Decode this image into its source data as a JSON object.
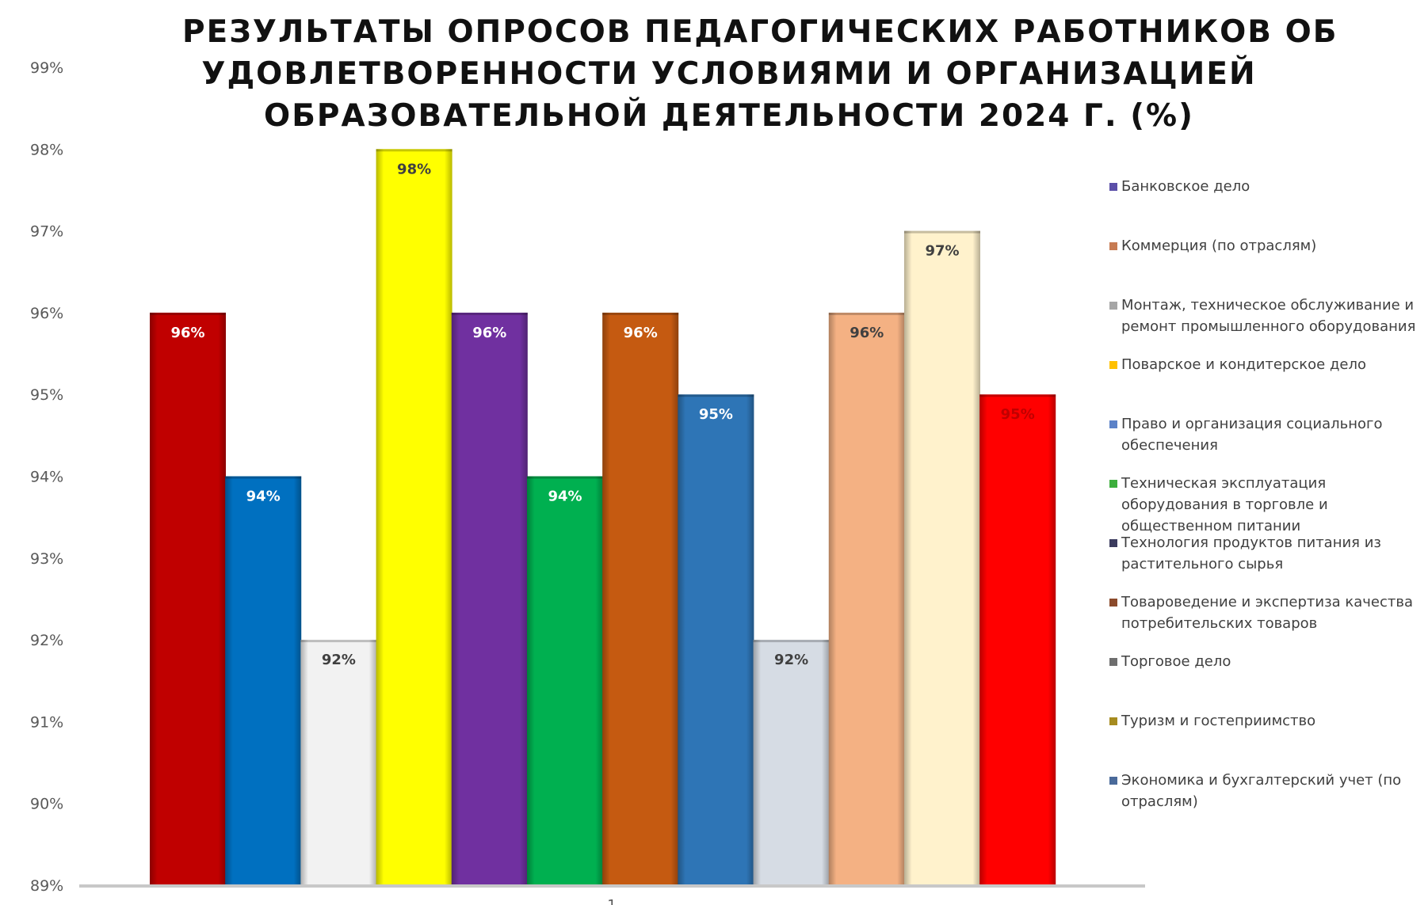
{
  "chart_data": {
    "type": "bar",
    "title": "РЕЗУЛЬТАТЫ ОПРОСОВ ПЕДАГОГИЧЕСКИХ РАБОТНИКОВ ОБ УДОВЛЕТВОРЕННОСТИ УСЛОВИЯМИ И ОРГАНИЗАЦИЕЙ ОБРАЗОВАТЕЛЬНОЙ ДЕЯТЕЛЬНОСТИ 2024 Г. (%)",
    "title_lines": [
      "РЕЗУЛЬТАТЫ ОПРОСОВ ПЕДАГОГИЧЕСКИХ РАБОТНИКОВ ОБ",
      "УДОВЛЕТВОРЕННОСТИ УСЛОВИЯМИ И ОРГАНИЗАЦИЕЙ",
      "ОБРАЗОВАТЕЛЬНОЙ ДЕЯТЕЛЬНОСТИ 2024 Г. (%)"
    ],
    "categories": [
      "1"
    ],
    "ylim": [
      89,
      99
    ],
    "y_ticks": [
      "89%",
      "90%",
      "91%",
      "92%",
      "93%",
      "94%",
      "95%",
      "96%",
      "97%",
      "98%",
      "99%"
    ],
    "grid": false,
    "legend_position": "right",
    "bars": [
      {
        "value": 96,
        "label": "96%",
        "color": "#c00000",
        "label_color": "#ffffff"
      },
      {
        "value": 94,
        "label": "94%",
        "color": "#0070c0",
        "label_color": "#ffffff"
      },
      {
        "value": 92,
        "label": "92%",
        "color": "#f2f2f2",
        "label_color": "#404040"
      },
      {
        "value": 98,
        "label": "98%",
        "color": "#ffff00",
        "label_color": "#404040"
      },
      {
        "value": 96,
        "label": "96%",
        "color": "#7030a0",
        "label_color": "#ffffff"
      },
      {
        "value": 94,
        "label": "94%",
        "color": "#00b050",
        "label_color": "#ffffff"
      },
      {
        "value": 96,
        "label": "96%",
        "color": "#c55a11",
        "label_color": "#ffffff"
      },
      {
        "value": 95,
        "label": "95%",
        "color": "#2e75b6",
        "label_color": "#ffffff"
      },
      {
        "value": 92,
        "label": "92%",
        "color": "#d6dce4",
        "label_color": "#404040"
      },
      {
        "value": 96,
        "label": "96%",
        "color": "#f4b183",
        "label_color": "#404040"
      },
      {
        "value": 97,
        "label": "97%",
        "color": "#fff2cc",
        "label_color": "#404040"
      },
      {
        "value": 95,
        "label": "95%",
        "color": "#ff0000",
        "label_color": "#c00000"
      }
    ],
    "legend": [
      {
        "name": "Банковское дело",
        "color": "#5b4fa8"
      },
      {
        "name": "Коммерция (по отраслям)",
        "color": "#c77b53"
      },
      {
        "name": "Монтаж, техническое обслуживание и ремонт промышленного оборудования",
        "color": "#a6a6a6"
      },
      {
        "name": "Поварское и кондитерское дело",
        "color": "#ffc000"
      },
      {
        "name": "Право и организация социального обеспечения",
        "color": "#5b82c8"
      },
      {
        "name": "Техническая эксплуатация оборудования в торговле и общественном питании",
        "color": "#3cae3c"
      },
      {
        "name": "Технология продуктов питания из растительного сырья",
        "color": "#3b3b5e"
      },
      {
        "name": "Товароведение и экспертиза качества потребительских товаров",
        "color": "#8b4a2b"
      },
      {
        "name": "Торговое дело",
        "color": "#6e6e6e"
      },
      {
        "name": "Туризм и гостеприимство",
        "color": "#a68b1f"
      },
      {
        "name": "Экономика и бухгалтерский учет (по отраслям)",
        "color": "#4a6a9a"
      }
    ]
  }
}
